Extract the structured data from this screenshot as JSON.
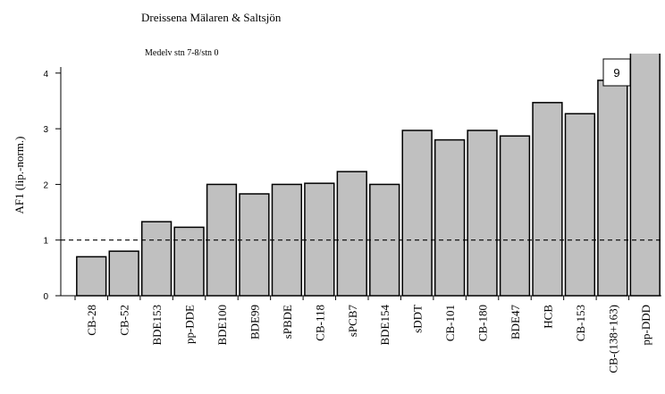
{
  "chart_data": {
    "type": "bar",
    "title": "Dreissena Mälaren & Saltsjön",
    "subtitle": "Medelv stn 7-8/stn 0",
    "y_label": "AF1 (lip.-norm.)",
    "categories": [
      "CB-28",
      "CB-52",
      "BDE153",
      "pp-DDE",
      "BDE100",
      "BDE99",
      "sPBDE",
      "CB-118",
      "sPCB7",
      "BDE154",
      "sDDT",
      "CB-101",
      "CB-180",
      "BDE47",
      "HCB",
      "CB-153",
      "CB-(138+163)",
      "pp-DDD"
    ],
    "values": [
      0.7,
      0.8,
      1.33,
      1.23,
      2.0,
      1.83,
      2.0,
      2.02,
      2.23,
      2.0,
      2.97,
      2.8,
      2.97,
      2.87,
      3.47,
      3.27,
      3.87,
      4.4
    ],
    "color": "#c0c0c0",
    "ylim": [
      0,
      4.35
    ],
    "yticks": [
      0,
      1,
      2,
      3,
      4
    ],
    "reference_line": 1,
    "annotation": "9"
  }
}
